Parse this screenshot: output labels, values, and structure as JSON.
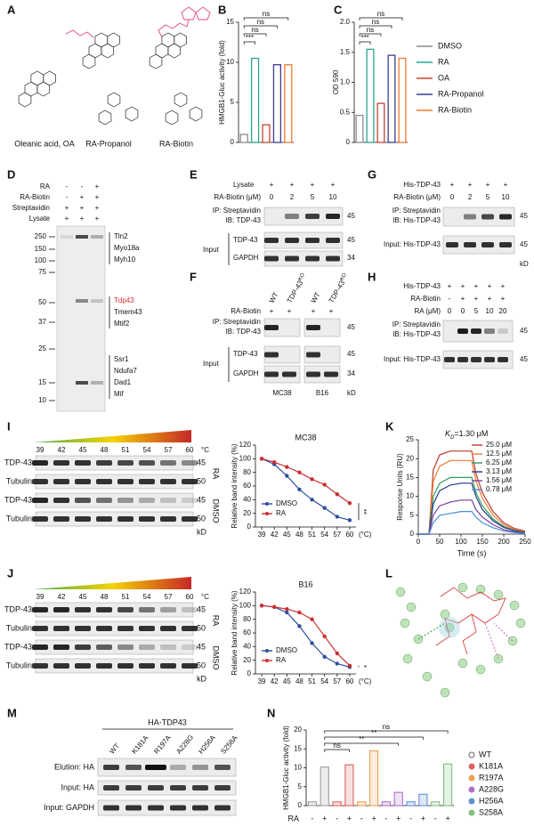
{
  "panel_labels": [
    "A",
    "B",
    "C",
    "D",
    "E",
    "F",
    "G",
    "H",
    "I",
    "J",
    "K",
    "L",
    "M",
    "N"
  ],
  "panels": {
    "A": {
      "compounds": [
        "Oleanic acid, OA",
        "RA-Propanol",
        "RA-Biotin"
      ]
    },
    "D": {
      "rows": [
        "RA",
        "RA-Biotin",
        "Streptavidin",
        "Lysate"
      ],
      "signs": [
        [
          "-",
          "-",
          "+"
        ],
        [
          "-",
          "+",
          "+"
        ],
        [
          "+",
          "+",
          "+"
        ],
        [
          "+",
          "+",
          "+"
        ]
      ],
      "markers": [
        250,
        150,
        100,
        75,
        50,
        37,
        25,
        15,
        10
      ],
      "proteins": [
        "Tln2",
        "Myo18a",
        "Myh10",
        "Tdp43",
        "Tmem43",
        "Mtif2",
        "Ssr1",
        "Ndufa7",
        "Dad1",
        "Mif"
      ]
    },
    "E": {
      "lysate": "Lysate",
      "lysate_signs": [
        "+",
        "+",
        "+",
        "+"
      ],
      "dose_label": "RA-Biotin (μM)",
      "doses": [
        0,
        2,
        5,
        10
      ],
      "ip": "IP: Streptavidin",
      "ib": "IB: TDP-43",
      "input": "Input",
      "rows": [
        "TDP-43",
        "GAPDH"
      ],
      "mw": [
        45,
        45,
        34
      ]
    },
    "F": {
      "lanes": [
        "WT",
        "TDP-43",
        "WT",
        "TDP-43"
      ],
      "ko": "KO",
      "treatment": "RA-Biotin",
      "signs": [
        "+",
        "+",
        "+",
        "+"
      ],
      "ip": "IP: Streptavidin",
      "ib": "IB: TDP-43",
      "input": "Input",
      "rows": [
        "TDP-43",
        "GAPDH"
      ],
      "mw": [
        45,
        45,
        34
      ],
      "cells": [
        "MC38",
        "B16"
      ],
      "unit": "kD"
    },
    "G": {
      "protein": "His-TDP-43",
      "protein_signs": [
        "+",
        "+",
        "+",
        "+"
      ],
      "dose_label": "RA-Biotin (μM)",
      "doses": [
        0,
        2,
        5,
        10
      ],
      "ip": "IP: Streptavidin",
      "ib": "IB: His-TDP-43",
      "input": "Input: His-TDP-43",
      "mw": [
        45,
        45
      ],
      "unit": "kD"
    },
    "H": {
      "protein": "His-TDP-43",
      "protein_signs": [
        "+",
        "+",
        "+",
        "+",
        "+"
      ],
      "biotin": "RA-Biotin",
      "biotin_signs": [
        "-",
        "+",
        "+",
        "+",
        "+"
      ],
      "dose_label": "RA (μM)",
      "doses": [
        0,
        0,
        5,
        10,
        20
      ],
      "ip": "IP: Streptavidin",
      "ib": "IB: His-TDP-43",
      "input": "Input: His-TDP-43",
      "mw": [
        45,
        45
      ]
    },
    "I": {
      "temps": [
        39,
        42,
        45,
        48,
        51,
        54,
        57,
        60
      ],
      "unit": "°C",
      "rows": [
        "TDP-43",
        "Tubulin",
        "TDP-43",
        "Tubulin"
      ],
      "mw": [
        45,
        50,
        45,
        50
      ],
      "groups": [
        "RA",
        "DMSO"
      ],
      "kd": "kD"
    },
    "J": {
      "temps": [
        39,
        42,
        45,
        48,
        51,
        54,
        57,
        60
      ],
      "unit": "°C",
      "rows": [
        "TDP-43",
        "Tubulin",
        "TDP-43",
        "Tubulin"
      ],
      "mw": [
        45,
        50,
        45,
        50
      ],
      "groups": [
        "RA",
        "DMSO"
      ],
      "kd": "kD"
    },
    "M": {
      "header": "HA-TDP43",
      "lanes": [
        "WT",
        "K181A",
        "R197A",
        "A228G",
        "H256A",
        "S258A"
      ],
      "rows": [
        "Elution: HA",
        "Input: HA",
        "Input: GAPDH"
      ]
    }
  },
  "chart_data": [
    {
      "type": "bar",
      "ylabel": "HMGB1-Gluc activity (fold)",
      "categories": [
        "DMSO",
        "RA",
        "OA",
        "RA-Propanol",
        "RA-Biotin"
      ],
      "colors": [
        "#8c8c8c",
        "#2aa58b",
        "#c8442f",
        "#3b3d96",
        "#f07a32"
      ],
      "values": [
        1,
        10.5,
        2.2,
        9.7,
        9.7
      ],
      "ylim": [
        0,
        15
      ],
      "yticks": [
        0,
        5,
        10,
        15
      ],
      "annotations": [
        "***",
        "ns",
        "ns",
        "ns"
      ]
    },
    {
      "type": "bar",
      "ylabel": "OD 590",
      "colors": [
        "#8c8c8c",
        "#2aa58b",
        "#c8442f",
        "#3b3d96",
        "#f07a32"
      ],
      "values": [
        0.45,
        1.55,
        0.65,
        1.45,
        1.4
      ],
      "ylim": [
        0,
        2
      ],
      "yticks": [
        0,
        0.5,
        {
          "value": 1,
          "label": "1.0"
        },
        1.5,
        {
          "value": 2,
          "label": "2.0"
        }
      ],
      "annotations": [
        "***",
        "ns",
        "ns",
        "ns"
      ]
    },
    {
      "type": "line",
      "title": "MC38",
      "ylabel": "Relative band intensity (%)",
      "xlabel": "(°C)",
      "x": [
        39,
        42,
        45,
        48,
        51,
        54,
        57,
        60
      ],
      "xlim": [
        37.5,
        61.5
      ],
      "xticks": [
        39,
        42,
        45,
        48,
        51,
        54,
        57,
        60
      ],
      "ylim": [
        0,
        120
      ],
      "yticks": [
        0,
        20,
        40,
        60,
        80,
        100,
        120
      ],
      "markers": true,
      "series": [
        {
          "name": "DMSO",
          "color": "#2f4f9e",
          "values": [
            100,
            92,
            75,
            55,
            40,
            28,
            15,
            10
          ]
        },
        {
          "name": "RA",
          "color": "#cc2f2f",
          "values": [
            100,
            95,
            88,
            80,
            70,
            62,
            48,
            35
          ]
        }
      ],
      "annotation": "**"
    },
    {
      "type": "line",
      "title": "B16",
      "ylabel": "Relative band intensity (%)",
      "xlabel": "(°C)",
      "x": [
        39,
        42,
        45,
        48,
        51,
        54,
        57,
        60
      ],
      "xlim": [
        37.5,
        61.5
      ],
      "xticks": [
        39,
        42,
        45,
        48,
        51,
        54,
        57,
        60
      ],
      "ylim": [
        0,
        120
      ],
      "yticks": [
        0,
        20,
        40,
        60,
        80,
        100,
        120
      ],
      "markers": true,
      "series": [
        {
          "name": "DMSO",
          "color": "#2f4f9e",
          "values": [
            100,
            98,
            90,
            70,
            45,
            25,
            15,
            10
          ]
        },
        {
          "name": "RA",
          "color": "#cc2f2f",
          "values": [
            100,
            98,
            95,
            90,
            80,
            55,
            30,
            12
          ]
        }
      ],
      "annotation": "*"
    },
    {
      "type": "line",
      "ylabel": "Response Units (RU)",
      "xlabel": "Time (s)",
      "x": [
        0,
        25,
        35,
        50,
        75,
        100,
        125,
        135,
        150,
        175,
        200,
        225,
        250
      ],
      "xlim": [
        0,
        250
      ],
      "xticks": [
        0,
        50,
        100,
        150,
        200,
        250
      ],
      "ylim": [
        0,
        25
      ],
      "yticks": [
        0,
        5,
        10,
        15,
        20,
        25
      ],
      "markers": false,
      "kd_label": {
        "symbol": "K",
        "sub": "D",
        "value": "=1.30 μM"
      },
      "series": [
        {
          "name": "25.0 μM",
          "color": "#c0392b",
          "values": [
            0,
            0,
            17,
            21,
            22,
            22,
            22,
            16,
            11,
            6,
            3,
            1.5,
            0.8
          ]
        },
        {
          "name": "12.5 μM",
          "color": "#f07a32",
          "values": [
            0,
            0,
            14,
            18,
            19.5,
            19.5,
            19.5,
            14,
            9.5,
            5,
            2.5,
            1.2,
            0.6
          ]
        },
        {
          "name": "6.25 μM",
          "color": "#2e9e5b",
          "values": [
            0,
            0,
            10,
            13.5,
            15,
            15,
            15,
            11,
            7.5,
            4,
            2,
            1,
            0.5
          ]
        },
        {
          "name": "3.13 μM",
          "color": "#1f3b8a",
          "values": [
            0,
            0,
            8,
            11.5,
            13,
            13.5,
            13.5,
            10,
            6.5,
            3.5,
            1.8,
            0.9,
            0.4
          ]
        },
        {
          "name": "1.56 μM",
          "color": "#7b3f9e",
          "values": [
            0,
            0,
            5,
            7.5,
            8.5,
            9,
            9,
            6.5,
            4.5,
            2.5,
            1.2,
            0.6,
            0.3
          ]
        },
        {
          "name": "0.78 μM",
          "color": "#4a90d9",
          "values": [
            0,
            0,
            3,
            5,
            5.5,
            6,
            6,
            4.5,
            3,
            1.7,
            0.8,
            0.4,
            0.2
          ]
        }
      ]
    },
    {
      "type": "bar",
      "ylabel": "HMGB1-Gluc activity (fold)",
      "x_row_label": "RA",
      "treatment": [
        "-",
        "+"
      ],
      "ylim": [
        0,
        20
      ],
      "yticks": [
        0,
        5,
        10,
        15,
        20
      ],
      "series": [
        {
          "name": "WT",
          "color": "#9e9e9e",
          "values": [
            1,
            10.2
          ]
        },
        {
          "name": "K181A",
          "color": "#e06060",
          "values": [
            1,
            10.8
          ]
        },
        {
          "name": "R197A",
          "color": "#f0a050",
          "values": [
            1,
            14.5
          ]
        },
        {
          "name": "A228G",
          "color": "#b070c8",
          "values": [
            1,
            3.5
          ]
        },
        {
          "name": "H256A",
          "color": "#6090d0",
          "values": [
            1,
            3
          ]
        },
        {
          "name": "S258A",
          "color": "#80c080",
          "values": [
            1,
            11
          ]
        }
      ],
      "annotations": [
        "ns",
        "**",
        "**",
        "ns"
      ]
    }
  ]
}
